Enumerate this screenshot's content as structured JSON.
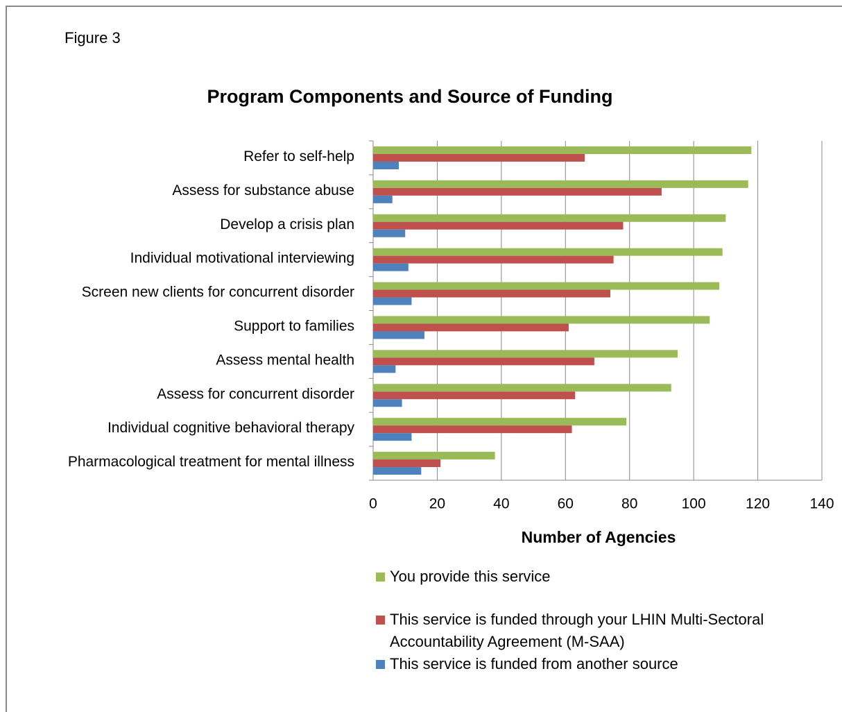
{
  "figure_label": "Figure 3",
  "chart_data": {
    "type": "hbar",
    "title": "Program Components and Source of Funding",
    "x_label": "Number of Agencies",
    "categories": [
      "Refer to self-help",
      "Assess for substance abuse",
      "Develop a crisis plan",
      "Individual motivational interviewing",
      "Screen new clients for concurrent disorder",
      "Support to families",
      "Assess mental health",
      "Assess for concurrent disorder",
      "Individual cognitive behavioral therapy",
      "Pharmacological treatment for mental illness"
    ],
    "series": [
      {
        "name": "You provide this service",
        "color": "#9bbb59",
        "values": [
          118,
          117,
          110,
          109,
          108,
          105,
          95,
          93,
          79,
          38
        ]
      },
      {
        "name": "This service is funded through your LHIN Multi-Sectoral Accountability Agreement (M-SAA)",
        "color": "#c0504d",
        "values": [
          66,
          90,
          78,
          75,
          74,
          61,
          69,
          63,
          62,
          21
        ]
      },
      {
        "name": "This service is funded from another source",
        "color": "#4f81bd",
        "values": [
          8,
          6,
          10,
          11,
          12,
          16,
          7,
          9,
          12,
          15
        ]
      }
    ],
    "xlim": [
      0,
      140
    ],
    "xticks": [
      0,
      20,
      40,
      60,
      80,
      100,
      120,
      140
    ],
    "grid": true,
    "legend": "bottom"
  }
}
